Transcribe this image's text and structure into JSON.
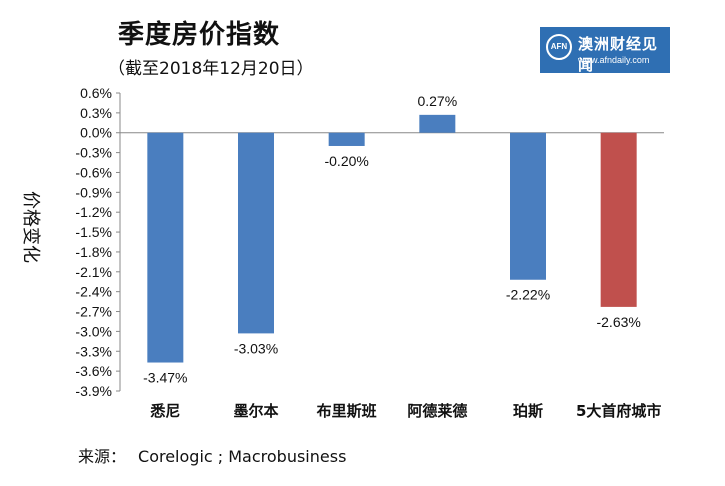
{
  "header": {
    "title": "季度房价指数",
    "subtitle": "（截至2018年12月20日）"
  },
  "brand": {
    "logo_text": "AFN",
    "name": "澳洲财经见闻",
    "url": "www.afndaily.com",
    "color": "#2f6fb3"
  },
  "source": {
    "label": "来源：",
    "text": "Corelogic ; Macrobusiness"
  },
  "chart_data": {
    "type": "bar",
    "title": "季度房价指数",
    "ylabel": "价格变化",
    "xlabel": "",
    "categories": [
      "悉尼",
      "墨尔本",
      "布里斯班",
      "阿德莱德",
      "珀斯",
      "5大首府城市"
    ],
    "values": [
      -3.47,
      -3.03,
      -0.2,
      0.27,
      -2.22,
      -2.63
    ],
    "data_labels": [
      "-3.47%",
      "-3.03%",
      "-0.20%",
      "0.27%",
      "-2.22%",
      "-2.63%"
    ],
    "bar_colors": [
      "#4a7ebf",
      "#4a7ebf",
      "#4a7ebf",
      "#4a7ebf",
      "#4a7ebf",
      "#c0504d"
    ],
    "ylim": [
      -3.9,
      0.6
    ],
    "yticks": [
      0.6,
      0.3,
      0.0,
      -0.3,
      -0.6,
      -0.9,
      -1.2,
      -1.5,
      -1.8,
      -2.1,
      -2.4,
      -2.7,
      -3.0,
      -3.3,
      -3.6,
      -3.9
    ],
    "ytick_labels": [
      "0.6%",
      "0.3%",
      "0.0%",
      "-0.3%",
      "-0.6%",
      "-0.9%",
      "-1.2%",
      "-1.5%",
      "-1.8%",
      "-2.1%",
      "-2.4%",
      "-2.7%",
      "-3.0%",
      "-3.3%",
      "-3.6%",
      "-3.9%"
    ],
    "grid": false,
    "legend": "none"
  }
}
